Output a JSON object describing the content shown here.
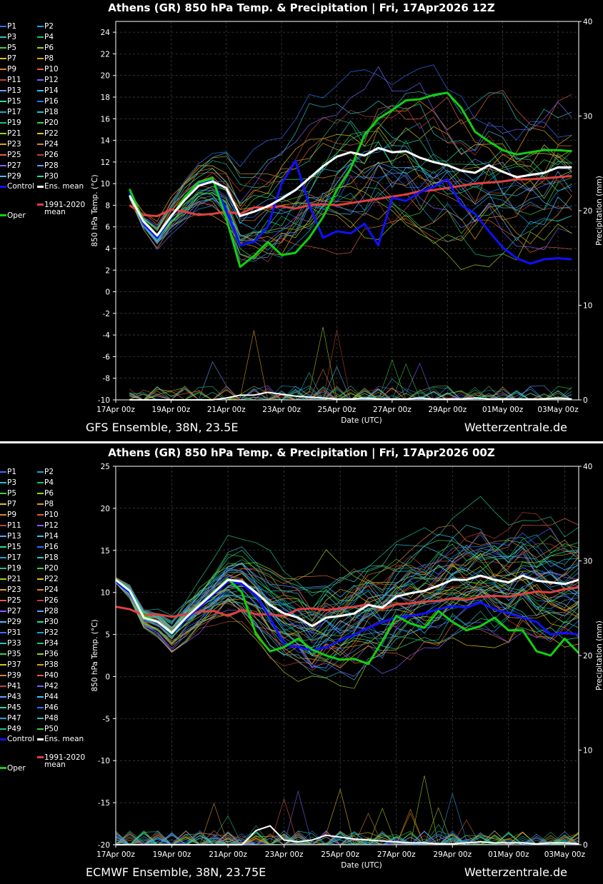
{
  "panels": [
    {
      "id": "gfs",
      "title": "Athens  (GR)  850 hPa Temp. & Precipitation | Fri, 17Apr2026 12Z",
      "footer_left": "GFS Ensemble, 38N, 23.5E",
      "footer_right": "Wetterzentrale.de",
      "legend": [
        "P1",
        "P2",
        "P3",
        "P4",
        "P5",
        "P6",
        "P7",
        "P8",
        "P9",
        "P10",
        "P11",
        "P12",
        "P13",
        "P14",
        "P15",
        "P16",
        "P17",
        "P18",
        "P19",
        "P20",
        "P21",
        "P22",
        "P23",
        "P24",
        "P25",
        "P26",
        "P27",
        "P28",
        "P29",
        "P30"
      ],
      "legend_control": "Control",
      "legend_mean": "Ens. mean",
      "legend_oper": "Oper",
      "legend_clim": "1991-2020\nmean"
    },
    {
      "id": "ecmwf",
      "title": "Athens  (GR)  850 hPa Temp. & Precipitation | Fri, 17Apr2026 00Z",
      "footer_left": "ECMWF Ensemble, 38N, 23.75E",
      "footer_right": "Wetterzentrale.de",
      "legend": [
        "P1",
        "P2",
        "P3",
        "P4",
        "P5",
        "P6",
        "P7",
        "P8",
        "P9",
        "P10",
        "P11",
        "P12",
        "P13",
        "P14",
        "P15",
        "P16",
        "P17",
        "P18",
        "P19",
        "P20",
        "P21",
        "P22",
        "P23",
        "P24",
        "P25",
        "P26",
        "P27",
        "P28",
        "P29",
        "P30",
        "P31",
        "P32",
        "P33",
        "P34",
        "P35",
        "P36",
        "P37",
        "P38",
        "P39",
        "P40",
        "P41",
        "P42",
        "P43",
        "P44",
        "P45",
        "P46",
        "P47",
        "P48",
        "P49",
        "P50"
      ],
      "legend_control": "Control",
      "legend_mean": "Ens. mean",
      "legend_oper": "Oper",
      "legend_clim": "1991-2020\nmean"
    }
  ],
  "chart_data": [
    {
      "type": "line",
      "title": "Athens  (GR)  850 hPa Temp. & Precipitation | Fri, 17Apr2026 12Z",
      "xlabel": "Date (UTC)",
      "ylabel": "850 hPa Temp. (°C)",
      "y2label": "Precipitation (mm)",
      "ylim": [
        -10,
        25
      ],
      "y2lim": [
        0,
        40
      ],
      "yticks": [
        -10,
        -8,
        -6,
        -4,
        -2,
        0,
        2,
        4,
        6,
        8,
        10,
        12,
        14,
        16,
        18,
        20,
        22,
        24
      ],
      "y2ticks": [
        0,
        10,
        20,
        30,
        40
      ],
      "xlim": [
        "17Apr 00z",
        "03May 18z"
      ],
      "xticks": [
        "17Apr 00z",
        "19Apr 00z",
        "21Apr 00z",
        "23Apr 00z",
        "25Apr 00z",
        "27Apr 00z",
        "29Apr 00z",
        "01May 00z",
        "03May 00z"
      ],
      "grid": true,
      "x_days": [
        0.5,
        1,
        1.5,
        2,
        2.5,
        3,
        3.5,
        4,
        4.5,
        5,
        5.5,
        6,
        6.5,
        7,
        7.5,
        8,
        8.5,
        9,
        9.5,
        10,
        10.5,
        11,
        11.5,
        12,
        12.5,
        13,
        13.5,
        14,
        14.5,
        15,
        15.5,
        16,
        16.5
      ],
      "series": [
        {
          "name": "Ens. mean",
          "color": "#ffffff",
          "values": [
            8.9,
            6.5,
            5.2,
            7.0,
            8.5,
            9.8,
            10.2,
            9.6,
            7.0,
            7.4,
            7.9,
            8.6,
            9.4,
            10.5,
            11.6,
            12.5,
            12.9,
            12.6,
            13.3,
            12.9,
            13.0,
            12.4,
            12.0,
            11.7,
            11.2,
            11.0,
            11.7,
            11.1,
            10.6,
            10.8,
            11.0,
            11.5,
            11.5
          ]
        },
        {
          "name": "Control",
          "color": "#1010ff",
          "values": [
            9.2,
            6.3,
            5.0,
            6.8,
            8.7,
            10.0,
            10.4,
            7.5,
            4.3,
            4.6,
            6.0,
            10.0,
            12.1,
            8.0,
            5.0,
            5.6,
            5.4,
            6.3,
            4.3,
            8.7,
            8.4,
            9.2,
            9.7,
            10.4,
            8.0,
            7.2,
            5.6,
            4.1,
            3.1,
            2.6,
            3.0,
            3.1,
            3.0
          ]
        },
        {
          "name": "Oper",
          "color": "#10d010",
          "values": [
            9.5,
            6.6,
            5.2,
            6.9,
            8.8,
            10.1,
            10.5,
            6.8,
            2.3,
            3.3,
            4.6,
            3.4,
            3.6,
            5.0,
            6.9,
            9.4,
            11.4,
            14.5,
            16.0,
            16.8,
            17.7,
            17.8,
            18.2,
            18.4,
            17.0,
            14.8,
            13.9,
            13.1,
            12.7,
            12.9,
            13.1,
            13.1,
            13.0
          ]
        },
        {
          "name": "1991-2020\nmean",
          "color": "#e04040",
          "values": [
            8.0,
            7.1,
            7.0,
            7.6,
            7.4,
            7.1,
            7.2,
            7.4,
            7.2,
            7.8,
            7.8,
            7.9,
            7.7,
            8.0,
            8.1,
            8.0,
            8.2,
            8.4,
            8.6,
            8.8,
            9.0,
            9.3,
            9.4,
            9.6,
            9.8,
            10.0,
            10.1,
            10.2,
            10.4,
            10.4,
            10.5,
            10.6,
            10.7
          ]
        }
      ],
      "precip_mean": [
        0,
        0,
        0,
        0,
        0,
        0,
        0,
        0.2,
        0.5,
        0.5,
        0.8,
        0.6,
        0.4,
        0.3,
        0.2,
        0.1,
        0.1,
        0.2,
        0.1,
        0.1,
        0.1,
        0.2,
        0.1,
        0.1,
        0.1,
        0.2,
        0.1,
        0.1,
        0.1,
        0.1,
        0.1,
        0.2,
        0.1
      ]
    },
    {
      "type": "line",
      "title": "Athens  (GR)  850 hPa Temp. & Precipitation | Fri, 17Apr2026 00Z",
      "xlabel": "Date (UTC)",
      "ylabel": "850 hPa Temp. (°C)",
      "y2label": "Precipitation (mm)",
      "ylim": [
        -20,
        25
      ],
      "y2lim": [
        0,
        40
      ],
      "yticks": [
        -20,
        -15,
        -10,
        -5,
        0,
        5,
        10,
        15,
        20,
        25
      ],
      "y2ticks": [
        0,
        10,
        20,
        30,
        40
      ],
      "xlim": [
        "17Apr 00z",
        "03May 12z"
      ],
      "xticks": [
        "17Apr 00z",
        "19Apr 00z",
        "21Apr 00z",
        "23Apr 00z",
        "25Apr 00z",
        "27Apr 00z",
        "29Apr 00z",
        "01May 00z",
        "03May 00z"
      ],
      "grid": true,
      "x_days": [
        0,
        0.5,
        1,
        1.5,
        2,
        2.5,
        3,
        3.5,
        4,
        4.5,
        5,
        5.5,
        6,
        6.5,
        7,
        7.5,
        8,
        8.5,
        9,
        9.5,
        10,
        10.5,
        11,
        11.5,
        12,
        12.5,
        13,
        13.5,
        14,
        14.5,
        15,
        15.5,
        16,
        16.5
      ],
      "series": [
        {
          "name": "Ens. mean",
          "color": "#ffffff",
          "values": [
            11.5,
            10.2,
            7.0,
            6.5,
            5.2,
            7.0,
            8.5,
            10.0,
            11.5,
            11.3,
            10.0,
            8.5,
            7.5,
            7.0,
            6.0,
            7.0,
            7.2,
            7.5,
            8.5,
            8.2,
            9.5,
            9.9,
            10.2,
            10.8,
            11.5,
            11.5,
            12.0,
            11.5,
            11.2,
            12.0,
            11.4,
            11.2,
            11.0,
            11.5
          ]
        },
        {
          "name": "Control",
          "color": "#1010ff",
          "values": [
            11.3,
            10.0,
            7.1,
            6.4,
            5.0,
            6.8,
            8.3,
            9.8,
            11.3,
            11.0,
            9.6,
            7.0,
            3.8,
            3.5,
            3.1,
            3.5,
            4.3,
            5.0,
            5.8,
            6.5,
            7.0,
            7.2,
            7.5,
            8.0,
            8.4,
            8.2,
            8.8,
            8.0,
            7.5,
            7.0,
            6.5,
            5.0,
            5.2,
            5.0
          ]
        },
        {
          "name": "Oper",
          "color": "#10d010",
          "values": [
            11.6,
            10.3,
            7.2,
            6.5,
            5.1,
            7.0,
            8.6,
            10.1,
            11.6,
            10.0,
            5.0,
            3.0,
            3.5,
            4.5,
            3.2,
            2.5,
            2.0,
            2.1,
            1.5,
            4.2,
            7.2,
            6.3,
            5.8,
            7.8,
            6.5,
            5.5,
            6.0,
            7.0,
            5.5,
            5.5,
            3.0,
            2.5,
            4.5,
            2.8
          ]
        },
        {
          "name": "1991-2020\nmean",
          "color": "#e04040",
          "values": [
            8.3,
            8.0,
            7.3,
            7.4,
            7.1,
            7.4,
            7.7,
            7.8,
            7.2,
            7.9,
            7.4,
            7.4,
            7.2,
            8.0,
            8.1,
            7.9,
            8.1,
            8.3,
            8.6,
            8.0,
            8.6,
            8.7,
            8.9,
            9.0,
            9.3,
            9.1,
            9.5,
            9.6,
            9.5,
            9.8,
            10.1,
            10.0,
            10.4,
            10.6
          ]
        }
      ],
      "precip_mean": [
        0,
        0,
        0,
        0,
        0,
        0,
        0,
        0,
        0,
        0,
        1.5,
        2.0,
        0.5,
        0.3,
        0.5,
        1.0,
        0.8,
        0.6,
        0.5,
        0.4,
        0.3,
        0.2,
        0.2,
        0.1,
        0.1,
        0.2,
        0.3,
        0.2,
        0.2,
        0.2,
        0.1,
        0.2,
        0.2,
        0.1
      ]
    }
  ]
}
